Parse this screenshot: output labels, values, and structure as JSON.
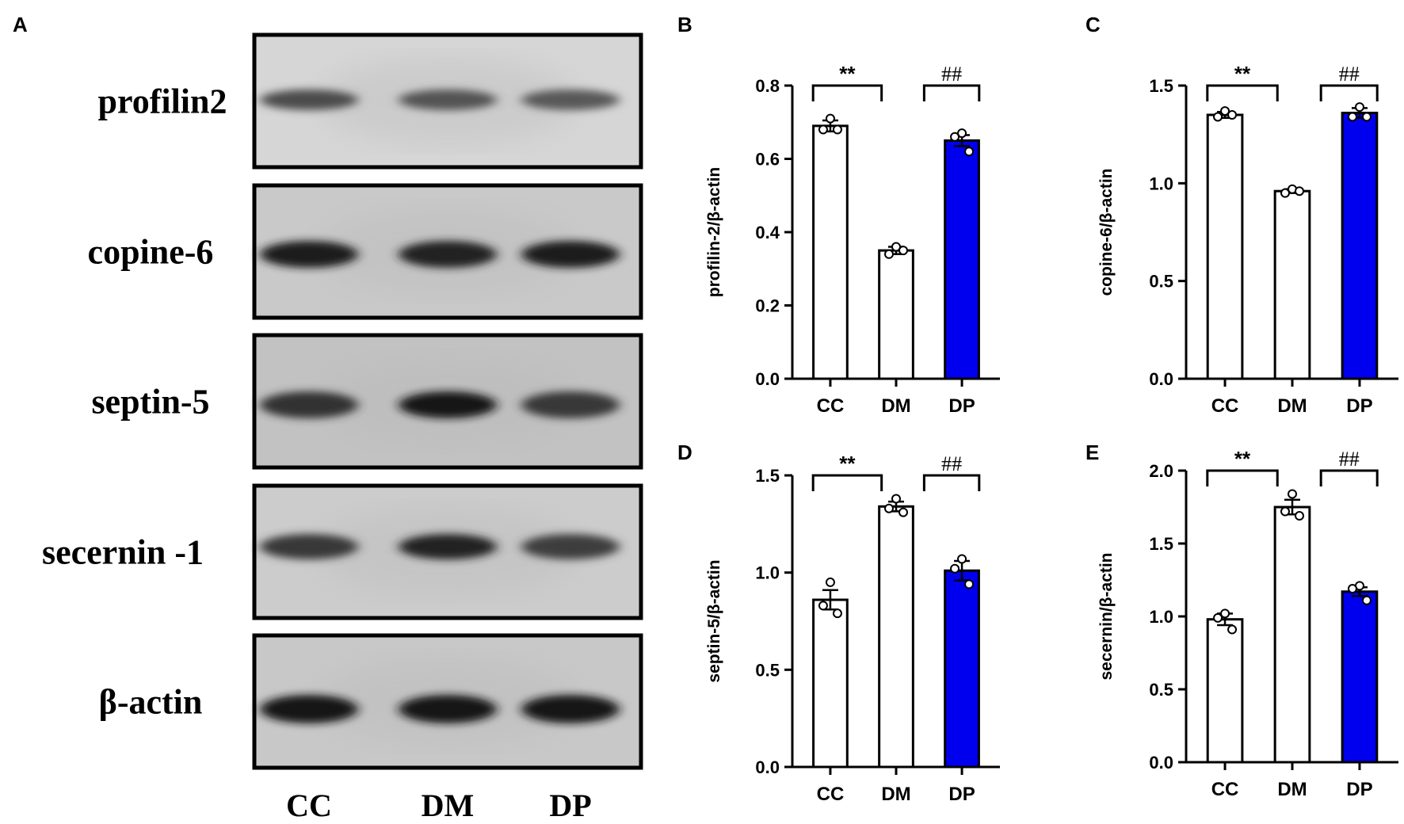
{
  "panel_a": {
    "letter": "A",
    "blots": [
      {
        "label": "profilin2",
        "bands": [
          0.55,
          0.5,
          0.45
        ]
      },
      {
        "label": "copine-6",
        "bands": [
          0.9,
          0.85,
          0.92
        ]
      },
      {
        "label": "septin-5",
        "bands": [
          0.75,
          0.95,
          0.7
        ]
      },
      {
        "label": "secernin -1",
        "bands": [
          0.7,
          0.85,
          0.65
        ]
      },
      {
        "label": "β-actin",
        "bands": [
          0.98,
          0.98,
          0.98
        ]
      }
    ],
    "lanes": [
      "CC",
      "DM",
      "DP"
    ]
  },
  "colors": {
    "bar_white": "#ffffff",
    "bar_blue": "#0000ee",
    "ink": "#000000"
  },
  "chart_data": [
    {
      "panel": "B",
      "type": "bar",
      "categories": [
        "CC",
        "DM",
        "DP"
      ],
      "values": [
        0.69,
        0.35,
        0.65
      ],
      "errors": [
        0.015,
        0.01,
        0.015
      ],
      "points": [
        [
          0.71,
          0.68,
          0.68
        ],
        [
          0.36,
          0.34,
          0.35
        ],
        [
          0.67,
          0.66,
          0.62
        ]
      ],
      "ylabel": "profilin-2/β-actin",
      "ylim": [
        0,
        0.8
      ],
      "yticks": [
        "0.0",
        "0.2",
        "0.4",
        "0.6",
        "0.8"
      ],
      "yticks_num": [
        0,
        0.2,
        0.4,
        0.6,
        0.8
      ],
      "fills": [
        "white",
        "white",
        "blue"
      ],
      "sig": [
        {
          "from": 0,
          "to": 1,
          "label": "**",
          "style": "star"
        },
        {
          "from": 1.7,
          "to": 2,
          "label": "##",
          "style": "hash"
        }
      ]
    },
    {
      "panel": "C",
      "type": "bar",
      "categories": [
        "CC",
        "DM",
        "DP"
      ],
      "values": [
        1.35,
        0.96,
        1.36
      ],
      "errors": [
        0.015,
        0.01,
        0.025
      ],
      "points": [
        [
          1.37,
          1.34,
          1.35
        ],
        [
          0.97,
          0.95,
          0.96
        ],
        [
          1.39,
          1.34,
          1.34
        ]
      ],
      "ylabel": "copine-6/β-actin",
      "ylim": [
        0,
        1.5
      ],
      "yticks": [
        "0.0",
        "0.5",
        "1.0",
        "1.5"
      ],
      "yticks_num": [
        0,
        0.5,
        1.0,
        1.5
      ],
      "fills": [
        "white",
        "white",
        "blue"
      ],
      "sig": [
        {
          "from": 0,
          "to": 1,
          "label": "**",
          "style": "star"
        },
        {
          "from": 1.7,
          "to": 2,
          "label": "##",
          "style": "hash"
        }
      ]
    },
    {
      "panel": "D",
      "type": "bar",
      "categories": [
        "CC",
        "DM",
        "DP"
      ],
      "values": [
        0.86,
        1.34,
        1.01
      ],
      "errors": [
        0.05,
        0.025,
        0.05
      ],
      "points": [
        [
          0.95,
          0.83,
          0.79
        ],
        [
          1.38,
          1.33,
          1.31
        ],
        [
          1.07,
          1.02,
          0.94
        ]
      ],
      "ylabel": "septin-5/β-actin",
      "ylim": [
        0,
        1.5
      ],
      "yticks": [
        "0.0",
        "0.5",
        "1.0",
        "1.5"
      ],
      "yticks_num": [
        0,
        0.5,
        1.0,
        1.5
      ],
      "fills": [
        "white",
        "white",
        "blue"
      ],
      "sig": [
        {
          "from": 0,
          "to": 1,
          "label": "**",
          "style": "star"
        },
        {
          "from": 1.7,
          "to": 2,
          "label": "##",
          "style": "hash"
        }
      ]
    },
    {
      "panel": "E",
      "type": "bar",
      "categories": [
        "CC",
        "DM",
        "DP"
      ],
      "values": [
        0.98,
        1.75,
        1.17
      ],
      "errors": [
        0.04,
        0.05,
        0.03
      ],
      "points": [
        [
          1.02,
          0.99,
          0.91
        ],
        [
          1.84,
          1.72,
          1.69
        ],
        [
          1.21,
          1.19,
          1.11
        ]
      ],
      "ylabel": "secernin/β-actin",
      "ylim": [
        0,
        2.0
      ],
      "yticks": [
        "0.0",
        "0.5",
        "1.0",
        "1.5",
        "2.0"
      ],
      "yticks_num": [
        0,
        0.5,
        1.0,
        1.5,
        2.0
      ],
      "fills": [
        "white",
        "white",
        "blue"
      ],
      "sig": [
        {
          "from": 0,
          "to": 1,
          "label": "**",
          "style": "star"
        },
        {
          "from": 1.7,
          "to": 2,
          "label": "##",
          "style": "hash"
        }
      ]
    }
  ]
}
